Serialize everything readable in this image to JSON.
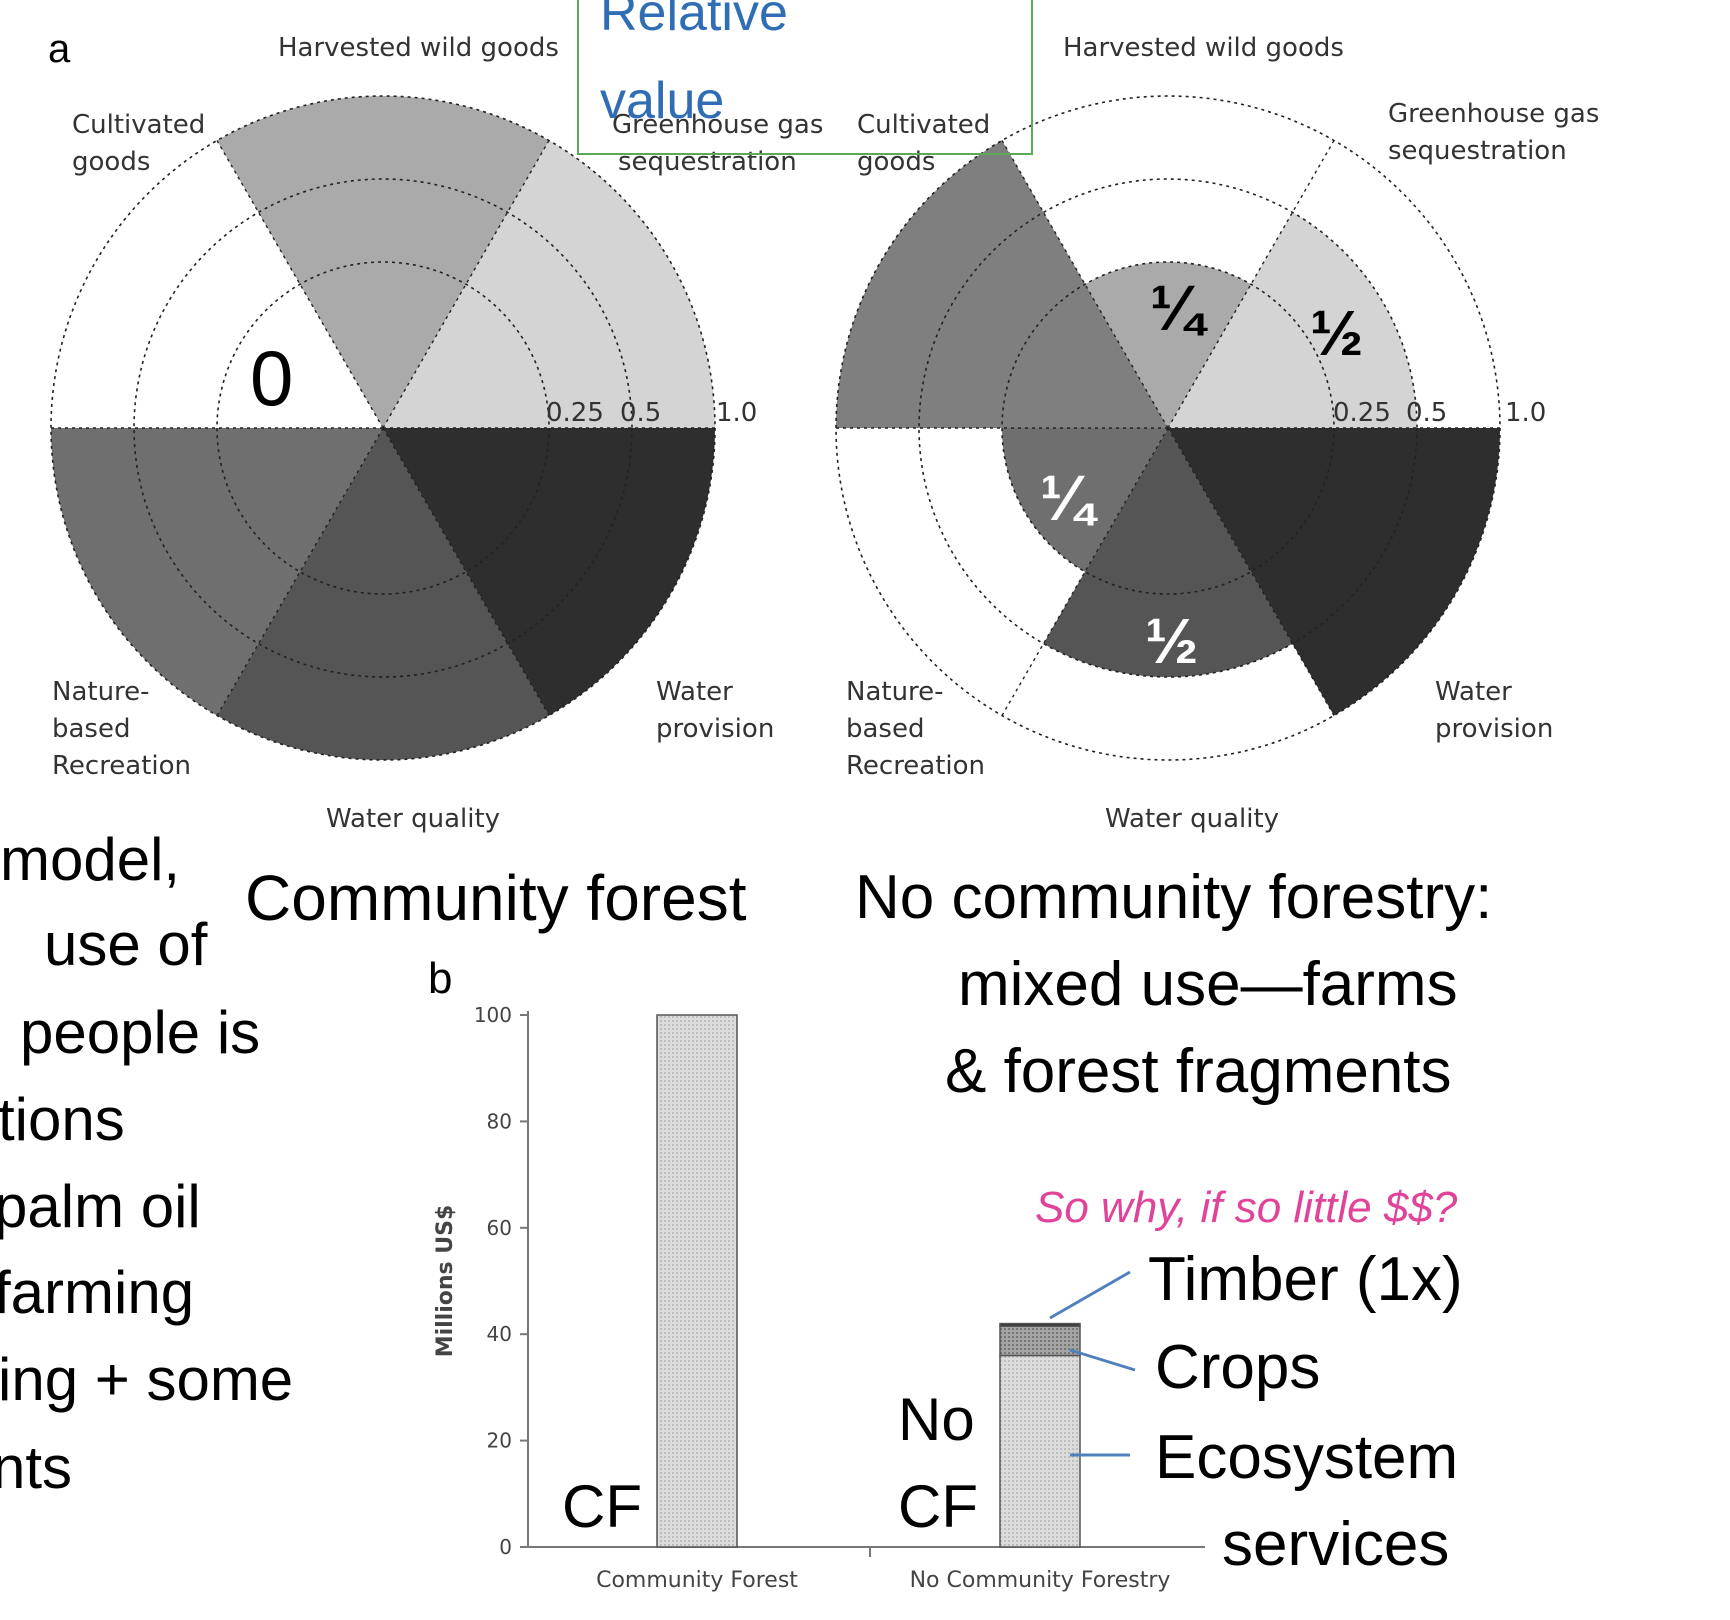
{
  "panel_a": {
    "letter": "a",
    "labels": {
      "harvested": "Harvested wild goods",
      "ghg_line1": "Greenhouse gas",
      "ghg_line2": "sequestration",
      "cult_line1": "Cultivated",
      "cult_line2": "goods",
      "nature_line1": "Nature-",
      "nature_line2": "based",
      "nature_line3": "Recreation",
      "water_prov_line1": "Water",
      "water_prov_line2": "provision",
      "water_quality": "Water quality"
    },
    "ring_ticks": [
      "0.25",
      "0.5",
      "1.0"
    ]
  },
  "legend_box": {
    "line1": "Relative",
    "line2": "value",
    "border_color": "#5aaa5a",
    "text_color": "#2f6db5"
  },
  "left_overlay": {
    "zero_label": "0",
    "caption": "Community forest"
  },
  "right_overlay": {
    "quarter_upper": "¼",
    "half_upper": "½",
    "quarter_lower": "¼",
    "half_lower": "½",
    "caption_line1": "No community forestry:",
    "caption_line2": "mixed use—farms",
    "caption_line3": "& forest fragments"
  },
  "side_text": [
    "model,",
    "use of",
    "l people is",
    "tions",
    "palm oil",
    "farming",
    "ing + some",
    "nts"
  ],
  "panel_b": {
    "letter": "b",
    "question": "So why, if so little $$?",
    "question_color": "#e0449a",
    "cf_label": "CF",
    "no_cf_line1": "No",
    "no_cf_line2": "CF",
    "annot_timber": "Timber (1x)",
    "annot_crops": "Crops",
    "annot_eco_line1": "Ecosystem",
    "annot_eco_line2": "services",
    "leader_color": "#4f81bd"
  },
  "chart_data": [
    {
      "type": "pie",
      "panel": "a-left",
      "subtitle": "Community forest",
      "categories": [
        "Harvested wild goods",
        "Greenhouse gas sequestration",
        "Water provision",
        "Water quality",
        "Nature-based Recreation",
        "Cultivated goods"
      ],
      "values": [
        1.0,
        1.0,
        1.0,
        1.0,
        1.0,
        0
      ],
      "colors": [
        "#aaaaaa",
        "#d4d4d4",
        "#2e2e2e",
        "#555555",
        "#6f6f6f",
        "#ffffff"
      ],
      "ring_levels": [
        0.25,
        0.5,
        1.0
      ]
    },
    {
      "type": "pie",
      "panel": "a-right",
      "subtitle": "No community forestry: mixed use—farms & forest fragments",
      "categories": [
        "Harvested wild goods",
        "Greenhouse gas sequestration",
        "Water provision",
        "Water quality",
        "Nature-based Recreation",
        "Cultivated goods"
      ],
      "values": [
        0.25,
        0.5,
        1.0,
        0.5,
        0.25,
        1.0
      ],
      "colors": [
        "#aaaaaa",
        "#d4d4d4",
        "#2e2e2e",
        "#555555",
        "#6f6f6f",
        "#7f7f7f"
      ],
      "ring_levels": [
        0.25,
        0.5,
        1.0
      ]
    },
    {
      "type": "bar",
      "panel": "b",
      "categories": [
        "Community Forest",
        "No Community Forestry"
      ],
      "series": [
        {
          "name": "Ecosystem services",
          "values": [
            100,
            36
          ],
          "color": "#d2d2d2"
        },
        {
          "name": "Crops",
          "values": [
            0,
            5.5
          ],
          "color": "#9a9a9a"
        },
        {
          "name": "Timber (1x)",
          "values": [
            0,
            0.5
          ],
          "color": "#333333"
        }
      ],
      "ylabel": "Millions US$",
      "yticks": [
        0,
        20,
        40,
        60,
        80,
        100
      ],
      "ylim": [
        0,
        100
      ]
    }
  ]
}
